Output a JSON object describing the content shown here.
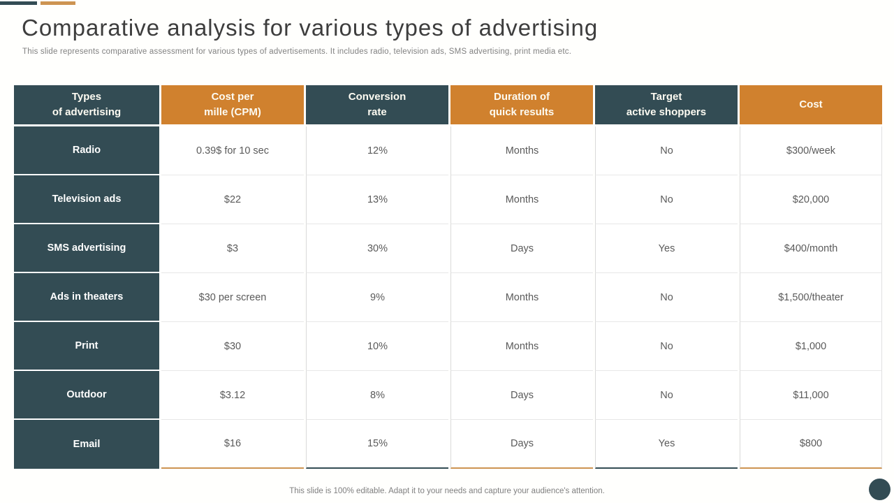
{
  "slide": {
    "title": "Comparative analysis for various types of advertising",
    "subtitle": "This slide represents comparative assessment for various types of advertisements. It includes radio, television ads, SMS advertising, print media etc.",
    "footer": "This slide is 100% editable. Adapt it to your needs and capture your audience's attention."
  },
  "colors": {
    "teal": "#334c54",
    "orange": "#d0812e",
    "body_text": "#5a5a5a",
    "muted_text": "#7f7f7f"
  },
  "table": {
    "columns": [
      {
        "label": "Types\nof advertising",
        "accent": "teal"
      },
      {
        "label": "Cost per\nmille (CPM)",
        "accent": "orange"
      },
      {
        "label": "Conversion\nrate",
        "accent": "teal"
      },
      {
        "label": "Duration of\nquick results",
        "accent": "orange"
      },
      {
        "label": "Target\nactive shoppers",
        "accent": "teal"
      },
      {
        "label": "Cost",
        "accent": "orange"
      }
    ],
    "rows": [
      {
        "type": "Radio",
        "cpm": "0.39$ for 10 sec",
        "conversion": "12%",
        "duration": "Months",
        "target": "No",
        "cost": "$300/week"
      },
      {
        "type": "Television ads",
        "cpm": "$22",
        "conversion": "13%",
        "duration": "Months",
        "target": "No",
        "cost": "$20,000"
      },
      {
        "type": "SMS advertising",
        "cpm": "$3",
        "conversion": "30%",
        "duration": "Days",
        "target": "Yes",
        "cost": "$400/month"
      },
      {
        "type": "Ads in theaters",
        "cpm": "$30 per screen",
        "conversion": "9%",
        "duration": "Months",
        "target": "No",
        "cost": "$1,500/theater"
      },
      {
        "type": "Print",
        "cpm": "$30",
        "conversion": "10%",
        "duration": "Months",
        "target": "No",
        "cost": "$1,000"
      },
      {
        "type": "Outdoor",
        "cpm": "$3.12",
        "conversion": "8%",
        "duration": "Days",
        "target": "No",
        "cost": "$11,000"
      },
      {
        "type": "Email",
        "cpm": "$16",
        "conversion": "15%",
        "duration": "Days",
        "target": "Yes",
        "cost": "$800"
      }
    ]
  }
}
